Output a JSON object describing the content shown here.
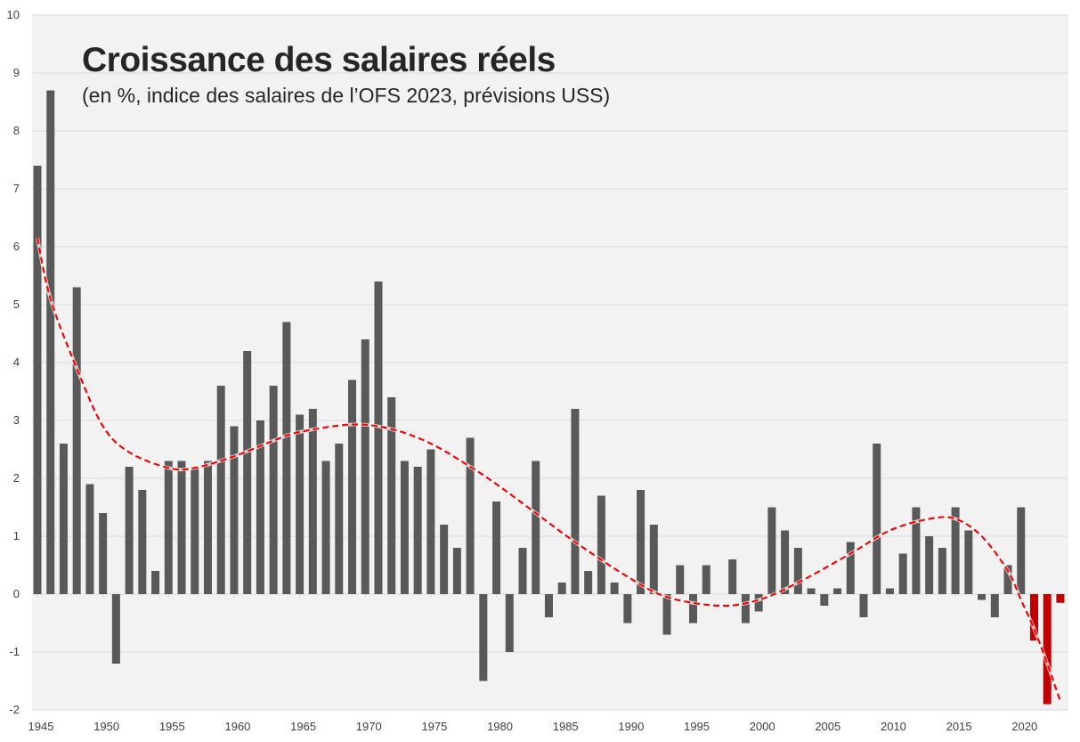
{
  "chart_data": {
    "type": "bar",
    "title": "Croissance des salaires réels",
    "subtitle": "(en %, indice des salaires de l’OFS 2023, prévisions USS)",
    "xlabel": "",
    "ylabel": "",
    "ylim": [
      -2,
      10
    ],
    "yticks": [
      "-2",
      "-1",
      "0",
      "1",
      "2",
      "3",
      "4",
      "5",
      "6",
      "7",
      "8",
      "9",
      "10"
    ],
    "xticks": [
      "1945",
      "1950",
      "1955",
      "1960",
      "1965",
      "1970",
      "1975",
      "1980",
      "1985",
      "1990",
      "1995",
      "2000",
      "2005",
      "2010",
      "2015",
      "2020"
    ],
    "grid": true,
    "legend": "none",
    "colors": {
      "bar": "#595959",
      "forecast_bar": "#c00000",
      "trend": "#ff0000",
      "plot_background": "#f2f2f2",
      "grid": "#d9d9d9"
    },
    "forecast_years": [
      2021,
      2022,
      2023
    ],
    "years": [
      1945,
      1946,
      1947,
      1948,
      1949,
      1950,
      1951,
      1952,
      1953,
      1954,
      1955,
      1956,
      1957,
      1958,
      1959,
      1960,
      1961,
      1962,
      1963,
      1964,
      1965,
      1966,
      1967,
      1968,
      1969,
      1970,
      1971,
      1972,
      1973,
      1974,
      1975,
      1976,
      1977,
      1978,
      1979,
      1980,
      1981,
      1982,
      1983,
      1984,
      1985,
      1986,
      1987,
      1988,
      1989,
      1990,
      1991,
      1992,
      1993,
      1994,
      1995,
      1996,
      1997,
      1998,
      1999,
      2000,
      2001,
      2002,
      2003,
      2004,
      2005,
      2006,
      2007,
      2008,
      2009,
      2010,
      2011,
      2012,
      2013,
      2014,
      2015,
      2016,
      2017,
      2018,
      2019,
      2020,
      2021,
      2022,
      2023
    ],
    "values": [
      7.4,
      8.7,
      2.6,
      5.3,
      1.9,
      1.4,
      -1.2,
      2.2,
      1.8,
      0.4,
      2.3,
      2.3,
      2.2,
      2.3,
      3.6,
      2.9,
      4.2,
      3.0,
      3.6,
      4.7,
      3.1,
      3.2,
      2.3,
      2.6,
      3.7,
      4.4,
      5.4,
      3.4,
      2.3,
      2.2,
      2.5,
      1.2,
      0.8,
      2.7,
      -1.5,
      1.6,
      -1.0,
      0.8,
      2.3,
      -0.4,
      0.2,
      3.2,
      0.4,
      1.7,
      0.2,
      -0.5,
      1.8,
      1.2,
      -0.7,
      0.5,
      -0.5,
      0.5,
      0.0,
      0.6,
      -0.5,
      -0.3,
      1.5,
      1.1,
      0.8,
      0.1,
      -0.2,
      0.1,
      0.9,
      -0.4,
      2.6,
      0.1,
      0.7,
      1.5,
      1.0,
      0.8,
      1.5,
      1.1,
      -0.1,
      -0.4,
      0.5,
      1.5,
      -0.8,
      -1.9,
      -0.15
    ],
    "trend": {
      "style": "dashed",
      "years": [
        1945,
        1946,
        1948,
        1950,
        1952,
        1955,
        1957,
        1960,
        1963,
        1965,
        1969,
        1972,
        1975,
        1978,
        1980,
        1983,
        1986,
        1990,
        1993,
        1997,
        2000,
        2003,
        2007,
        2010,
        2013,
        2015,
        2017,
        2019,
        2020,
        2021,
        2022,
        2023
      ],
      "values": [
        6.15,
        5.1,
        3.9,
        2.9,
        2.45,
        2.18,
        2.18,
        2.38,
        2.65,
        2.8,
        2.93,
        2.85,
        2.6,
        2.2,
        1.9,
        1.4,
        0.9,
        0.3,
        -0.05,
        -0.2,
        -0.1,
        0.2,
        0.7,
        1.1,
        1.3,
        1.3,
        1.0,
        0.4,
        -0.1,
        -0.6,
        -1.2,
        -1.85
      ]
    }
  }
}
